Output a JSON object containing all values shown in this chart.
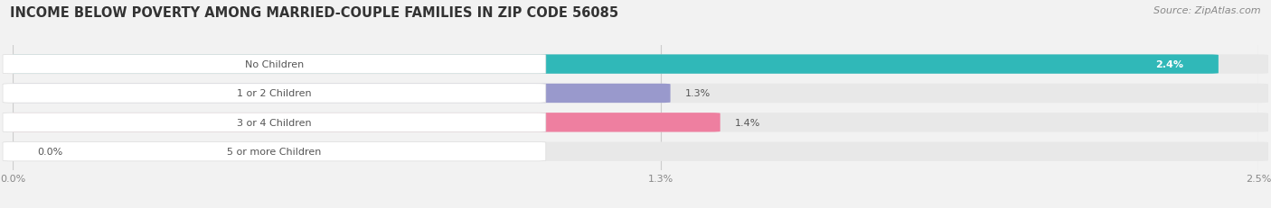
{
  "title": "INCOME BELOW POVERTY AMONG MARRIED-COUPLE FAMILIES IN ZIP CODE 56085",
  "source": "Source: ZipAtlas.com",
  "categories": [
    "No Children",
    "1 or 2 Children",
    "3 or 4 Children",
    "5 or more Children"
  ],
  "values": [
    2.4,
    1.3,
    1.4,
    0.0
  ],
  "bar_colors": [
    "#30b8b8",
    "#9999cc",
    "#ee7fa0",
    "#f5c9a0"
  ],
  "xlim_max": 2.5,
  "xticks": [
    0.0,
    1.3,
    2.5
  ],
  "xtick_labels": [
    "0.0%",
    "1.3%",
    "2.5%"
  ],
  "bar_height": 0.62,
  "background_color": "#f2f2f2",
  "bar_bg_color": "#e8e8e8",
  "label_bg_color": "#ffffff",
  "title_fontsize": 10.5,
  "source_fontsize": 8,
  "label_fontsize": 8,
  "value_fontsize": 8,
  "tick_fontsize": 8,
  "value_color_inside": "#ffffff",
  "value_color_outside": "#555555",
  "label_text_color": "#555555"
}
